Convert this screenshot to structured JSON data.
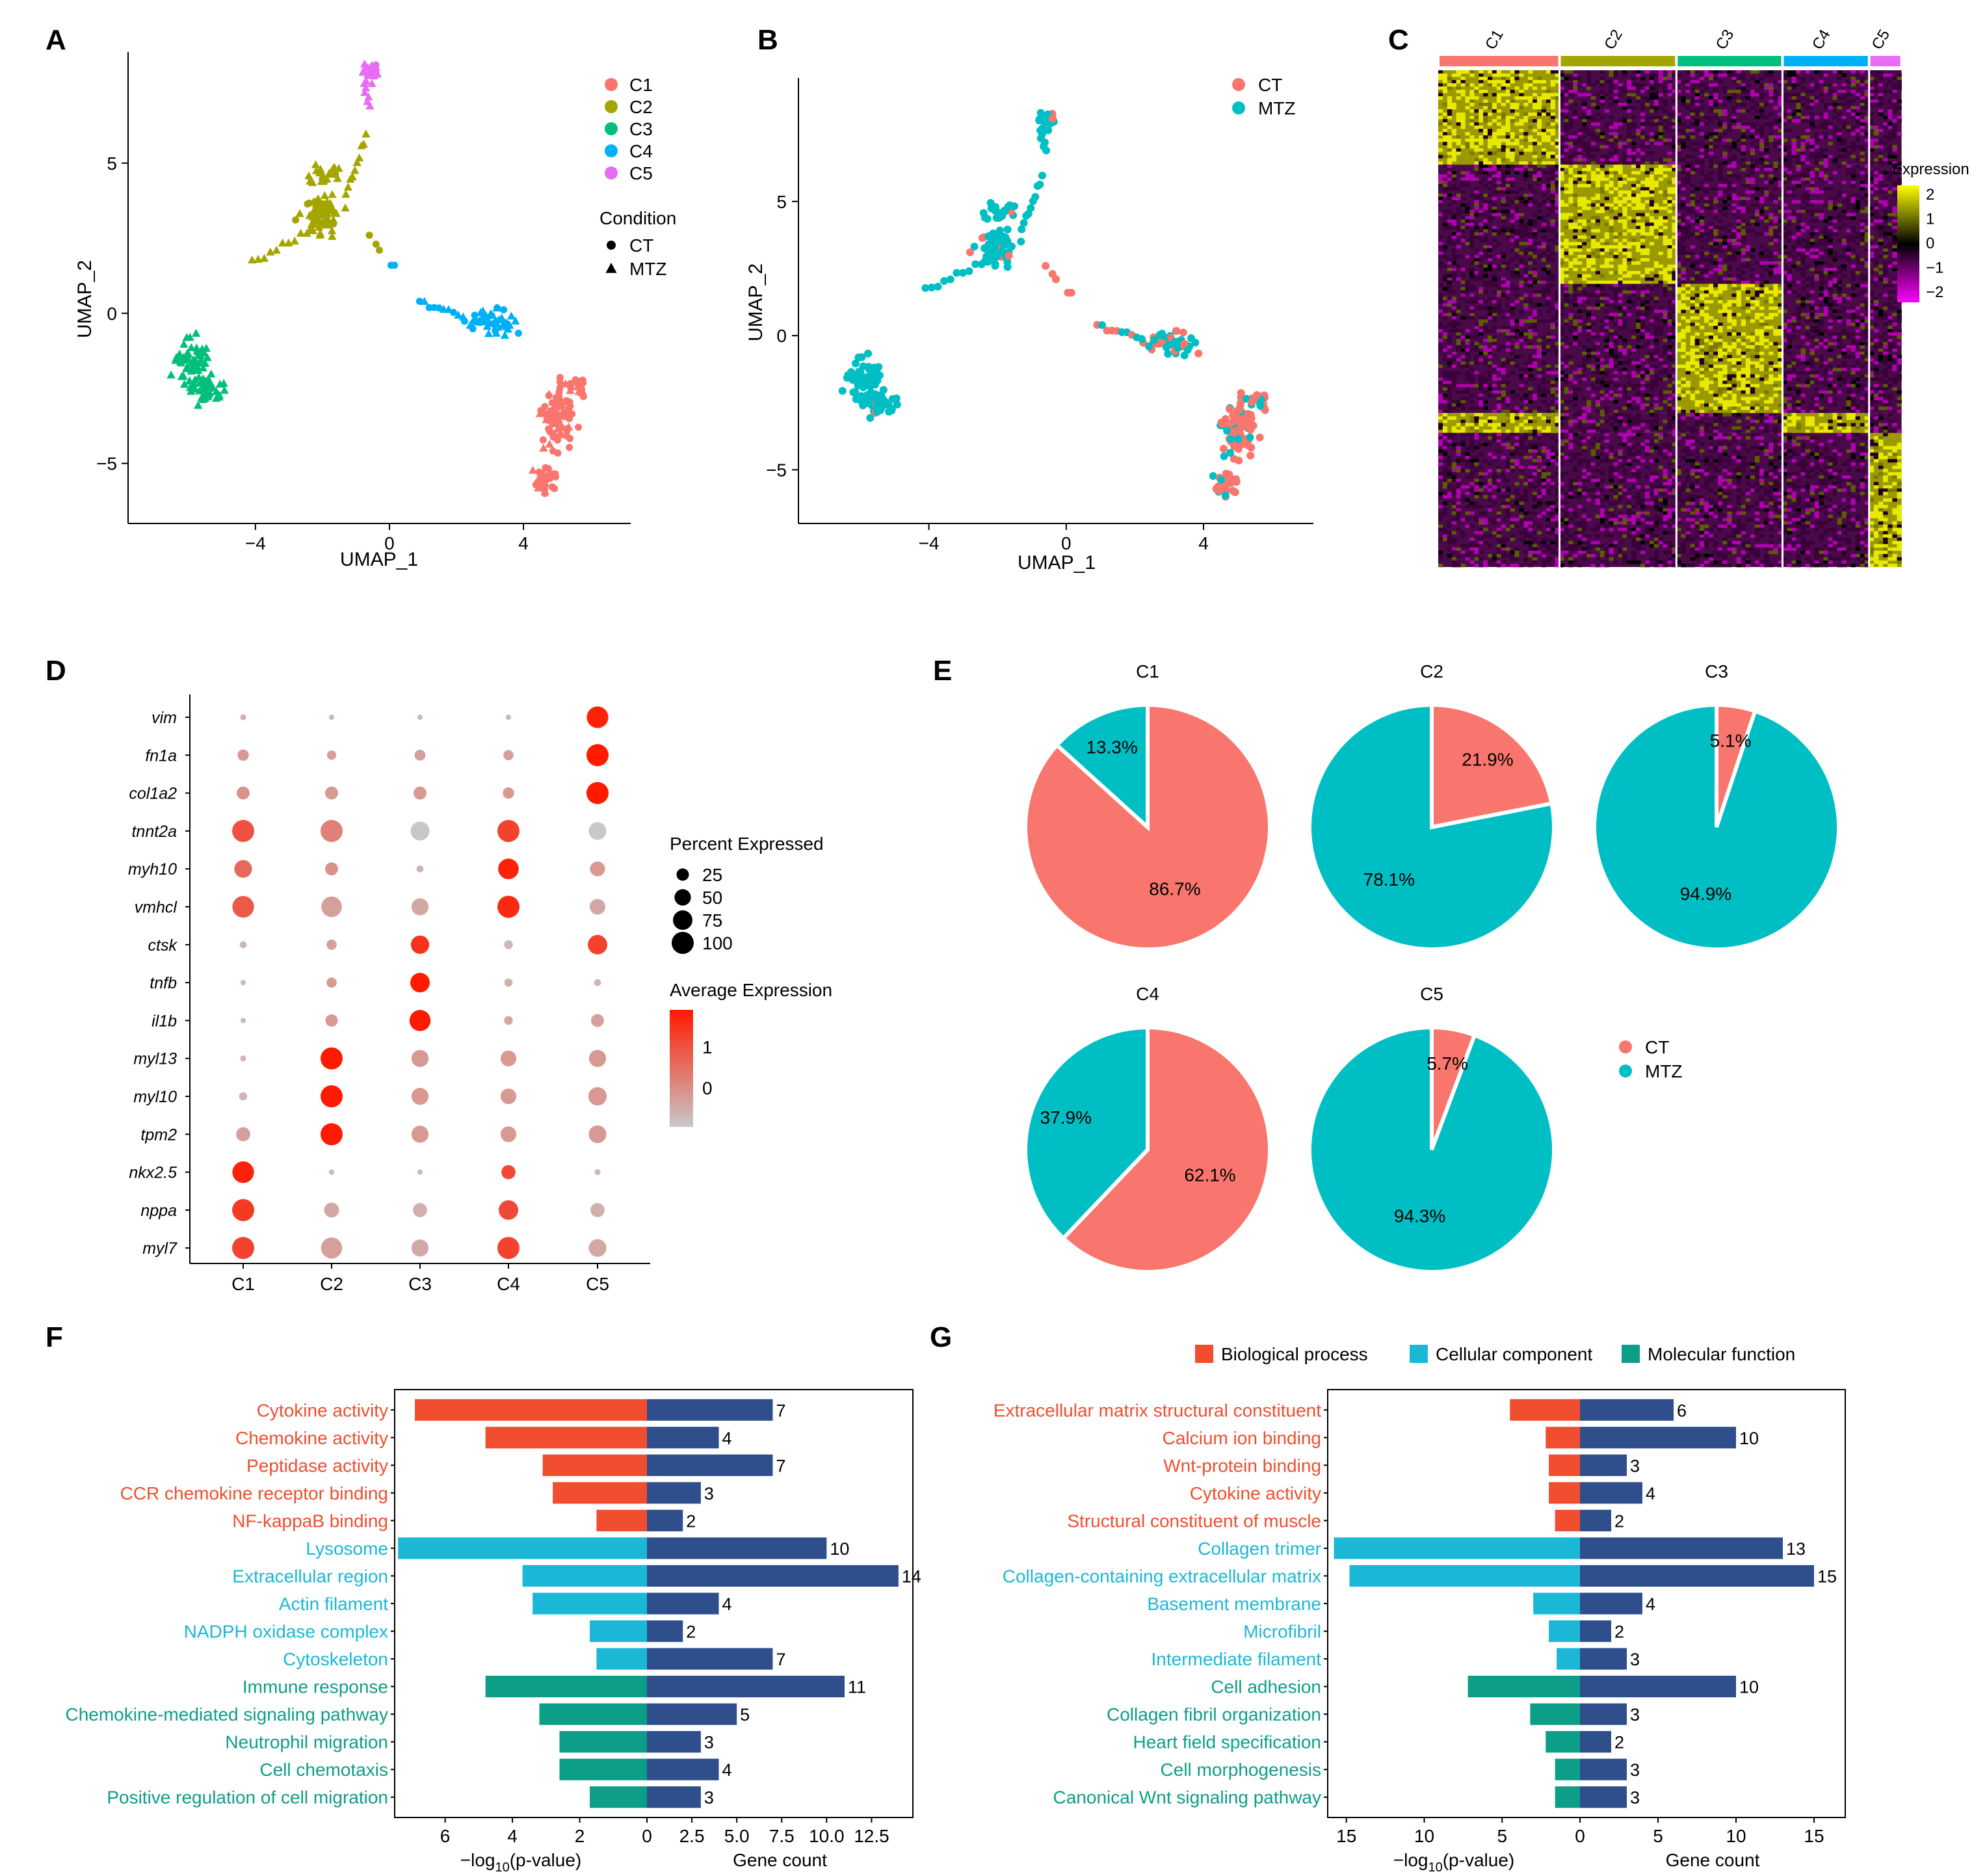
{
  "colors": {
    "C1": "#F8766D",
    "C2": "#A3A500",
    "C3": "#00BF7D",
    "C4": "#00B0F6",
    "C5": "#E76BF3",
    "CT": "#F8766D",
    "MTZ": "#00BFC4",
    "bio": "#F04E2E",
    "cell": "#1AB8D6",
    "mol": "#0D9E88",
    "count": "#2E4F8C",
    "expr_high": "#FFFF00",
    "expr_mid": "#000000",
    "expr_low": "#FF00FF",
    "avg_high": "#FF1A00",
    "avg_low": "#C8C8C8"
  },
  "panels": {
    "A": {
      "label": "A",
      "xlabel": "UMAP_1",
      "ylabel": "UMAP_2",
      "xticks": [
        -4,
        0,
        4
      ],
      "yticks": [
        -5,
        0,
        5
      ],
      "xlim": [
        -7.8,
        7.2
      ],
      "ylim": [
        -7.0,
        8.7
      ],
      "legend_clusters": [
        "C1",
        "C2",
        "C3",
        "C4",
        "C5"
      ],
      "legend_condition_title": "Condition",
      "legend_conditions": [
        "CT",
        "MTZ"
      ]
    },
    "B": {
      "label": "B",
      "xlabel": "UMAP_1",
      "ylabel": "UMAP_2",
      "xticks": [
        -4,
        0,
        4
      ],
      "yticks": [
        -5,
        0,
        5
      ],
      "xlim": [
        -7.8,
        7.2
      ],
      "ylim": [
        -7.0,
        9.6
      ],
      "legend_conditions": [
        "CT",
        "MTZ"
      ]
    },
    "C": {
      "label": "C",
      "clusters": [
        "C1",
        "C2",
        "C3",
        "C4",
        "C5"
      ],
      "cluster_fractions": [
        0.28,
        0.27,
        0.245,
        0.2,
        0.075
      ],
      "legend_title": "Expression",
      "legend_ticks": [
        2,
        1,
        0,
        -1,
        -2
      ]
    },
    "D": {
      "label": "D",
      "genes": [
        "vim",
        "fn1a",
        "col1a2",
        "tnnt2a",
        "myh10",
        "vmhcl",
        "ctsk",
        "tnfb",
        "il1b",
        "myl13",
        "myl10",
        "tpm2",
        "nkx2.5",
        "nppa",
        "myl7"
      ],
      "clusters": [
        "C1",
        "C2",
        "C3",
        "C4",
        "C5"
      ],
      "pct_title": "Percent Expressed",
      "pct_legend": [
        25,
        50,
        75,
        100
      ],
      "avg_title": "Average Expression",
      "avg_ticks": [
        1,
        0
      ],
      "pct": [
        [
          3,
          2,
          2,
          2,
          95
        ],
        [
          20,
          12,
          18,
          15,
          100
        ],
        [
          28,
          28,
          28,
          20,
          100
        ],
        [
          100,
          100,
          70,
          100,
          60
        ],
        [
          60,
          28,
          5,
          85,
          40
        ],
        [
          95,
          85,
          55,
          100,
          45
        ],
        [
          5,
          15,
          65,
          10,
          75
        ],
        [
          2,
          15,
          75,
          8,
          5
        ],
        [
          2,
          25,
          90,
          10,
          28
        ],
        [
          3,
          100,
          55,
          45,
          55
        ],
        [
          8,
          100,
          55,
          45,
          65
        ],
        [
          35,
          100,
          55,
          45,
          60
        ],
        [
          95,
          2,
          2,
          35,
          3
        ],
        [
          100,
          40,
          35,
          75,
          35
        ],
        [
          100,
          90,
          55,
          100,
          60
        ]
      ],
      "avg": [
        [
          -0.4,
          -0.5,
          -0.5,
          -0.5,
          1.4
        ],
        [
          -0.1,
          -0.2,
          -0.2,
          -0.2,
          1.5
        ],
        [
          0.0,
          -0.1,
          -0.1,
          -0.1,
          1.5
        ],
        [
          0.8,
          0.2,
          -0.7,
          1.0,
          -0.7
        ],
        [
          0.5,
          0.0,
          -0.5,
          1.4,
          -0.1
        ],
        [
          0.7,
          -0.2,
          -0.3,
          1.3,
          -0.3
        ],
        [
          -0.5,
          -0.2,
          1.2,
          -0.5,
          1.0
        ],
        [
          -0.5,
          -0.1,
          1.5,
          -0.4,
          -0.5
        ],
        [
          -0.5,
          -0.1,
          1.5,
          -0.3,
          -0.2
        ],
        [
          -0.5,
          1.5,
          -0.1,
          -0.1,
          -0.1
        ],
        [
          -0.5,
          1.5,
          -0.1,
          -0.1,
          -0.1
        ],
        [
          -0.2,
          1.5,
          -0.1,
          -0.1,
          -0.1
        ],
        [
          1.4,
          -0.5,
          -0.5,
          0.9,
          -0.5
        ],
        [
          1.1,
          -0.3,
          -0.4,
          0.9,
          -0.4
        ],
        [
          1.0,
          -0.2,
          -0.3,
          1.0,
          -0.3
        ]
      ]
    },
    "E": {
      "label": "E",
      "legend": [
        "CT",
        "MTZ"
      ],
      "pies": [
        {
          "title": "C1",
          "ct": 86.7,
          "mtz": 13.3,
          "ct_label": "86.7%",
          "mtz_label": "13.3%"
        },
        {
          "title": "C2",
          "ct": 21.9,
          "mtz": 78.1,
          "ct_label": "21.9%",
          "mtz_label": "78.1%"
        },
        {
          "title": "C3",
          "ct": 5.1,
          "mtz": 94.9,
          "ct_label": "5.1%",
          "mtz_label": "94.9%"
        },
        {
          "title": "C4",
          "ct": 62.1,
          "mtz": 37.9,
          "ct_label": "62.1%",
          "mtz_label": "37.9%"
        },
        {
          "title": "C5",
          "ct": 5.7,
          "mtz": 94.3,
          "ct_label": "5.7%",
          "mtz_label": "94.3%"
        }
      ]
    },
    "F": {
      "label": "F",
      "xlabel_left_pre": "−log",
      "xlabel_left_sub": "10",
      "xlabel_left_post": "(p-value)",
      "xlabel_right": "Gene count",
      "left_ticks": [
        "6",
        "4",
        "2",
        "0"
      ],
      "right_ticks": [
        "2.5",
        "5.0",
        "7.5",
        "10.0",
        "12.5"
      ],
      "pmax": 7.5,
      "cmax": 14.8,
      "terms": [
        {
          "term": "Cytokine activity",
          "cat": "bio",
          "p": 6.9,
          "count": 7
        },
        {
          "term": "Chemokine activity",
          "cat": "bio",
          "p": 4.8,
          "count": 4
        },
        {
          "term": "Peptidase activity",
          "cat": "bio",
          "p": 3.1,
          "count": 7
        },
        {
          "term": "CCR chemokine receptor binding",
          "cat": "bio",
          "p": 2.8,
          "count": 3
        },
        {
          "term": "NF-kappaB binding",
          "cat": "bio",
          "p": 1.5,
          "count": 2
        },
        {
          "term": "Lysosome",
          "cat": "cell",
          "p": 7.4,
          "count": 10
        },
        {
          "term": "Extracellular region",
          "cat": "cell",
          "p": 3.7,
          "count": 14
        },
        {
          "term": "Actin filament",
          "cat": "cell",
          "p": 3.4,
          "count": 4
        },
        {
          "term": "NADPH oxidase complex",
          "cat": "cell",
          "p": 1.7,
          "count": 2
        },
        {
          "term": "Cytoskeleton",
          "cat": "cell",
          "p": 1.5,
          "count": 7
        },
        {
          "term": "Immune response",
          "cat": "mol",
          "p": 4.8,
          "count": 11
        },
        {
          "term": "Chemokine-mediated signaling pathway",
          "cat": "mol",
          "p": 3.2,
          "count": 5
        },
        {
          "term": "Neutrophil migration",
          "cat": "mol",
          "p": 2.6,
          "count": 3
        },
        {
          "term": "Cell chemotaxis",
          "cat": "mol",
          "p": 2.6,
          "count": 4
        },
        {
          "term": "Positive regulation of cell migration",
          "cat": "mol",
          "p": 1.7,
          "count": 3
        }
      ]
    },
    "G": {
      "label": "G",
      "legend": [
        {
          "cat": "bio",
          "label": "Biological process"
        },
        {
          "cat": "cell",
          "label": "Cellular component"
        },
        {
          "cat": "mol",
          "label": "Molecular function"
        }
      ],
      "xlabel_left_pre": "−log",
      "xlabel_left_sub": "10",
      "xlabel_left_post": "(p-value)",
      "xlabel_right": "Gene count",
      "left_ticks": [
        "15",
        "10",
        "5",
        "0"
      ],
      "right_ticks": [
        "5",
        "10",
        "15"
      ],
      "pmax": 16.2,
      "cmax": 17.0,
      "terms": [
        {
          "term": "Extracellular matrix structural constituent",
          "cat": "bio",
          "p": 4.5,
          "count": 6
        },
        {
          "term": "Calcium ion binding",
          "cat": "bio",
          "p": 2.2,
          "count": 10
        },
        {
          "term": "Wnt-protein binding",
          "cat": "bio",
          "p": 2.0,
          "count": 3
        },
        {
          "term": "Cytokine activity",
          "cat": "bio",
          "p": 2.0,
          "count": 4
        },
        {
          "term": "Structural constituent of muscle",
          "cat": "bio",
          "p": 1.6,
          "count": 2
        },
        {
          "term": "Collagen trimer",
          "cat": "cell",
          "p": 15.8,
          "count": 13
        },
        {
          "term": "Collagen-containing extracellular matrix",
          "cat": "cell",
          "p": 14.8,
          "count": 15
        },
        {
          "term": "Basement membrane",
          "cat": "cell",
          "p": 3.0,
          "count": 4
        },
        {
          "term": "Microfibril",
          "cat": "cell",
          "p": 2.0,
          "count": 2
        },
        {
          "term": "Intermediate filament",
          "cat": "cell",
          "p": 1.5,
          "count": 3
        },
        {
          "term": "Cell adhesion",
          "cat": "mol",
          "p": 7.2,
          "count": 10
        },
        {
          "term": "Collagen fibril organization",
          "cat": "mol",
          "p": 3.2,
          "count": 3
        },
        {
          "term": "Heart field specification",
          "cat": "mol",
          "p": 2.2,
          "count": 2
        },
        {
          "term": "Cell morphogenesis",
          "cat": "mol",
          "p": 1.6,
          "count": 3
        },
        {
          "term": "Canonical Wnt signaling pathway",
          "cat": "mol",
          "p": 1.6,
          "count": 3
        }
      ]
    }
  },
  "chart_data": [
    {
      "type": "scatter",
      "title": "A",
      "xlabel": "UMAP_1",
      "ylabel": "UMAP_2",
      "series": [
        "C1",
        "C2",
        "C3",
        "C4",
        "C5"
      ],
      "note": "UMAP embedding colored by cluster, shape by condition (CT, MTZ)"
    },
    {
      "type": "scatter",
      "title": "B",
      "xlabel": "UMAP_1",
      "ylabel": "UMAP_2",
      "series": [
        "CT",
        "MTZ"
      ]
    },
    {
      "type": "heatmap",
      "title": "C",
      "categories": [
        "C1",
        "C2",
        "C3",
        "C4",
        "C5"
      ],
      "colorbar": [
        -2,
        2
      ]
    },
    {
      "type": "scatter",
      "title": "D",
      "note": "dot plot; values in panels.D.pct and panels.D.avg"
    },
    {
      "type": "pie",
      "title": "E",
      "series": [
        {
          "name": "C1",
          "values": [
            86.7,
            13.3
          ]
        },
        {
          "name": "C2",
          "values": [
            21.9,
            78.1
          ]
        },
        {
          "name": "C3",
          "values": [
            5.1,
            94.9
          ]
        },
        {
          "name": "C4",
          "values": [
            62.1,
            37.9
          ]
        },
        {
          "name": "C5",
          "values": [
            5.7,
            94.3
          ]
        }
      ],
      "categories": [
        "CT",
        "MTZ"
      ]
    },
    {
      "type": "bar",
      "title": "F",
      "note": "terms, -log10(p-value) and gene counts in panels.F.terms"
    },
    {
      "type": "bar",
      "title": "G",
      "note": "terms, -log10(p-value) and gene counts in panels.G.terms"
    }
  ]
}
